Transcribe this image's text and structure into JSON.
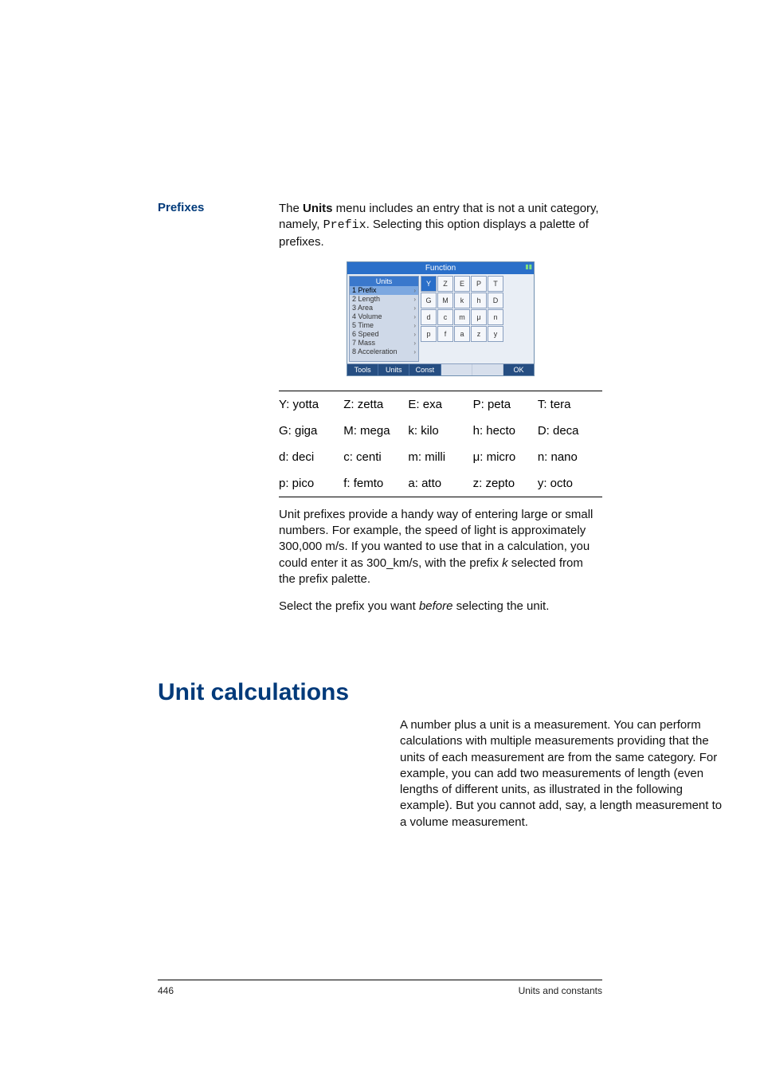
{
  "side_heading": "Prefixes",
  "intro": {
    "pre": "The ",
    "bold": "Units",
    "mid": " menu includes an entry that is not a unit category, namely, ",
    "mono": "Prefix",
    "post": ". Selecting this option displays a palette of prefixes."
  },
  "screenshot": {
    "title": "Function",
    "menu_title": "Units",
    "menu_items": [
      {
        "idx": "1",
        "label": "Prefix",
        "sel": true
      },
      {
        "idx": "2",
        "label": "Length",
        "sel": false
      },
      {
        "idx": "3",
        "label": "Area",
        "sel": false
      },
      {
        "idx": "4",
        "label": "Volume",
        "sel": false
      },
      {
        "idx": "5",
        "label": "Time",
        "sel": false
      },
      {
        "idx": "6",
        "label": "Speed",
        "sel": false
      },
      {
        "idx": "7",
        "label": "Mass",
        "sel": false
      },
      {
        "idx": "8",
        "label": "Acceleration",
        "sel": false
      }
    ],
    "palette": [
      [
        "Y",
        "Z",
        "E",
        "P",
        "T"
      ],
      [
        "G",
        "M",
        "k",
        "h",
        "D"
      ],
      [
        "d",
        "c",
        "m",
        "μ",
        "n"
      ],
      [
        "p",
        "f",
        "a",
        "z",
        "y"
      ]
    ],
    "softkeys": [
      "Tools",
      "Units",
      "Const",
      "",
      "",
      "OK"
    ]
  },
  "prefix_table": [
    [
      "Y: yotta",
      "Z: zetta",
      "E: exa",
      "P: peta",
      "T: tera"
    ],
    [
      "G: giga",
      "M: mega",
      "k: kilo",
      "h: hecto",
      "D: deca"
    ],
    [
      "d: deci",
      "c: centi",
      "m: milli",
      "μ: micro",
      "n: nano"
    ],
    [
      "p: pico",
      "f: femto",
      "a: atto",
      "z: zepto",
      "y: octo"
    ]
  ],
  "after_table": {
    "p1a": "Unit prefixes provide a handy way of entering large or small numbers. For example, the speed of light is approximately 300,000 m/s. If you wanted to use that in a calculation, you could enter it as 300_km/s, with the prefix ",
    "p1_ital": "k",
    "p1b": " selected from the prefix palette.",
    "p2a": "Select the prefix you want ",
    "p2_ital": "before",
    "p2b": " selecting the unit."
  },
  "section_heading": "Unit calculations",
  "section_para": "A number plus a unit is a measurement. You can perform calculations with multiple measurements providing that the units of each measurement are from the same category. For example, you can add two measurements of length (even lengths of different units, as illustrated in the following example). But you cannot add, say, a length measurement to a volume measurement.",
  "footer": {
    "page": "446",
    "title": "Units and constants"
  },
  "colors": {
    "heading": "#003a7a",
    "title_bg": "#2a6fc9",
    "panel_bg": "#e9eef5",
    "menu_bg": "#cfd9e8",
    "soft_bg": "#264e82"
  }
}
